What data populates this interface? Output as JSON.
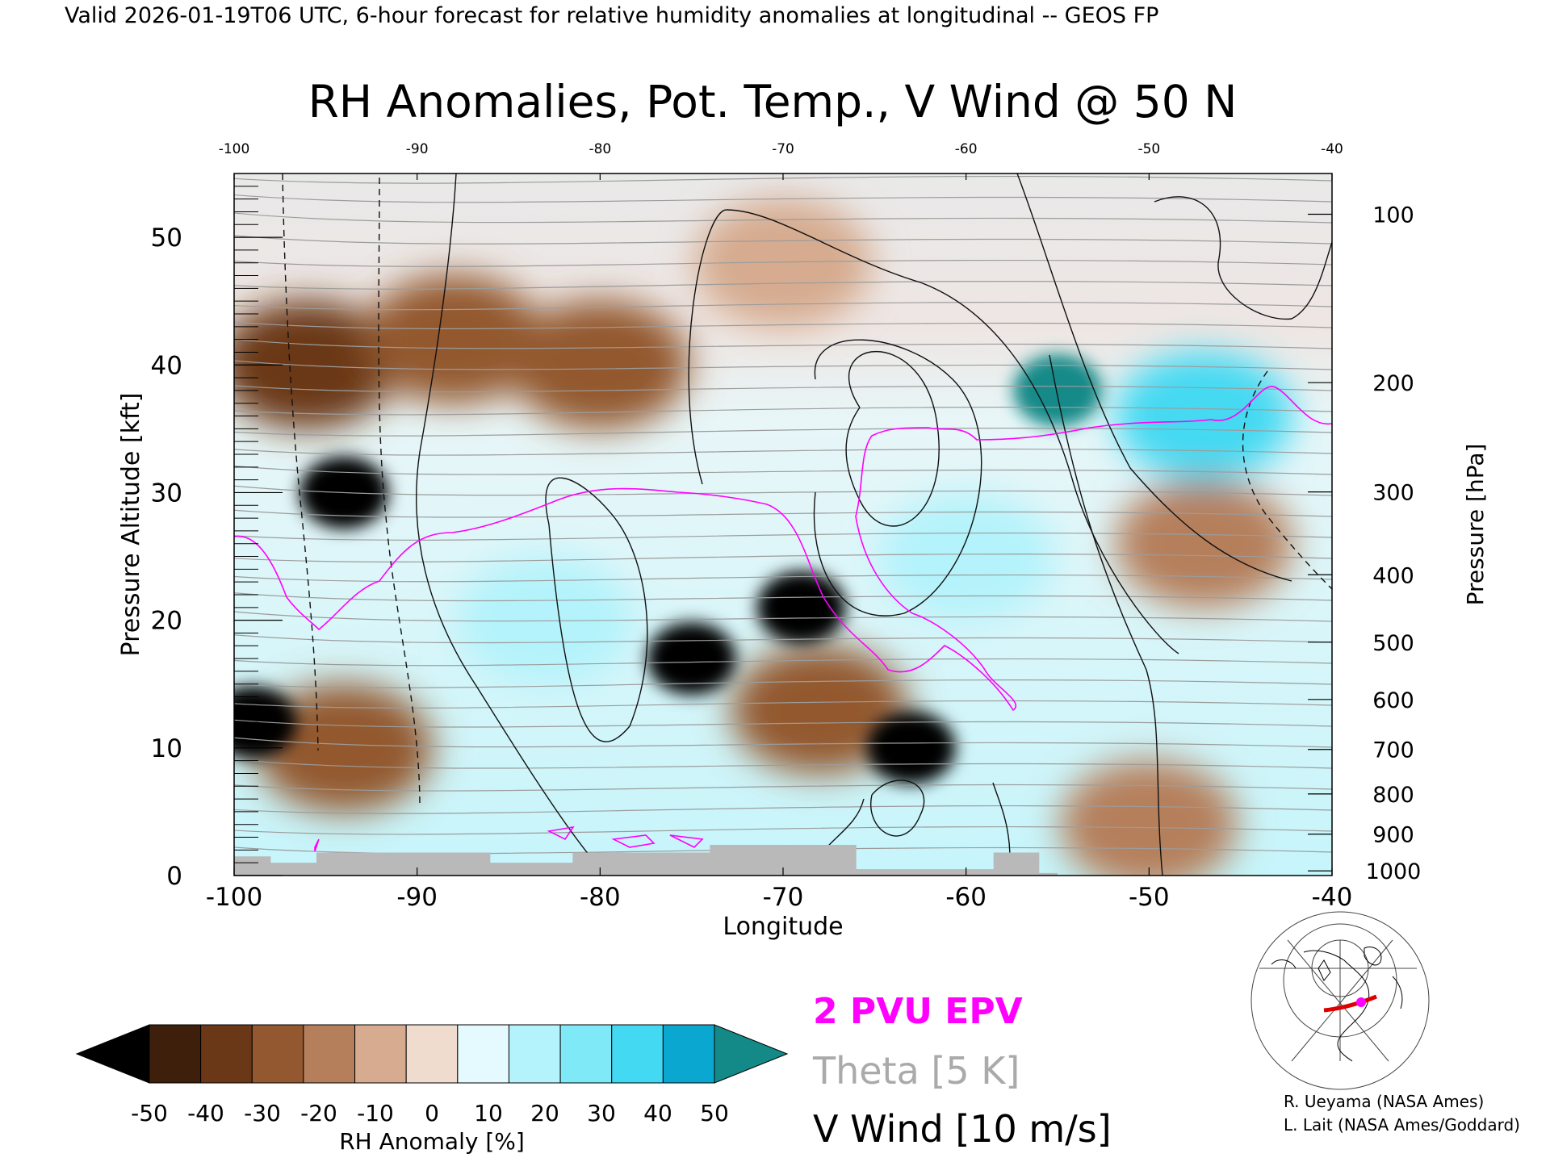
{
  "header": {
    "valid_line": "Valid 2026-01-19T06 UTC, 6-hour forecast for relative humidity anomalies at longitudinal -- GEOS FP"
  },
  "chart_data": {
    "type": "heatmap",
    "title": "RH Anomalies, Pot. Temp., V Wind @ 50 N",
    "xlabel": "Longitude",
    "ylabel_left": "Pressure Altitude [kft]",
    "ylabel_right": "Pressure [hPa]",
    "xlim": [
      -100,
      -40
    ],
    "ylim": [
      0,
      55
    ],
    "x_ticks": [
      "-100",
      "-90",
      "-80",
      "-70",
      "-60",
      "-50",
      "-40"
    ],
    "top_x_ticks": [
      "-100",
      "-90",
      "-80",
      "-70",
      "-60",
      "-50",
      "-40"
    ],
    "y_ticks": [
      "0",
      "10",
      "20",
      "30",
      "40",
      "50"
    ],
    "pressure_levels": [
      {
        "label": "100",
        "hpa": 100
      },
      {
        "label": "200",
        "hpa": 200
      },
      {
        "label": "300",
        "hpa": 300
      },
      {
        "label": "400",
        "hpa": 400
      },
      {
        "label": "500",
        "hpa": 500
      },
      {
        "label": "600",
        "hpa": 600
      },
      {
        "label": "700",
        "hpa": 700
      },
      {
        "label": "800",
        "hpa": 800
      },
      {
        "label": "900",
        "hpa": 900
      },
      {
        "label": "1000",
        "hpa": 1000
      }
    ],
    "colorbar": {
      "label": "RH Anomaly [%]",
      "ticks": [
        "-50",
        "-40",
        "-30",
        "-20",
        "-10",
        "0",
        "10",
        "20",
        "30",
        "40",
        "50"
      ],
      "colors": [
        "#000000",
        "#3d1f0c",
        "#6b3817",
        "#93582f",
        "#b57f5c",
        "#d6ab8f",
        "#f0dccf",
        "#e4fafe",
        "#b4f3fb",
        "#7fe9f8",
        "#44d9f2",
        "#0aa7d0",
        "#138a88"
      ]
    },
    "legend": [
      {
        "label": "2 PVU EPV",
        "color": "#ff00ff"
      },
      {
        "label": "Theta [5 K]",
        "color": "#aaaaaa"
      },
      {
        "label": "V Wind [10 m/s]",
        "color": "#000000"
      }
    ],
    "anomaly_regions": [
      {
        "lon": -94,
        "kft": 30,
        "rh": -50
      },
      {
        "lon": -96,
        "kft": 40,
        "rh": -40
      },
      {
        "lon": -88,
        "kft": 42,
        "rh": -30
      },
      {
        "lon": -99,
        "kft": 12,
        "rh": -50
      },
      {
        "lon": -94,
        "kft": 10,
        "rh": -30
      },
      {
        "lon": -80,
        "kft": 40,
        "rh": -25
      },
      {
        "lon": -69,
        "kft": 21,
        "rh": -50
      },
      {
        "lon": -75,
        "kft": 17,
        "rh": -50
      },
      {
        "lon": -63,
        "kft": 10,
        "rh": -50
      },
      {
        "lon": -68,
        "kft": 13,
        "rh": -30
      },
      {
        "lon": -70,
        "kft": 48,
        "rh": -10
      },
      {
        "lon": -55,
        "kft": 38,
        "rh": 50
      },
      {
        "lon": -47,
        "kft": 36,
        "rh": 40
      },
      {
        "lon": -83,
        "kft": 20,
        "rh": 20
      },
      {
        "lon": -60,
        "kft": 25,
        "rh": 20
      },
      {
        "lon": -50,
        "kft": 4,
        "rh": -15
      },
      {
        "lon": -47,
        "kft": 26,
        "rh": -15
      }
    ],
    "terrain_kft": [
      {
        "lon": -100,
        "kft": 1.5
      },
      {
        "lon": -98,
        "kft": 1.0
      },
      {
        "lon": -95.5,
        "kft": 1.8
      },
      {
        "lon": -86,
        "kft": 1.0
      },
      {
        "lon": -81.5,
        "kft": 1.8
      },
      {
        "lon": -74,
        "kft": 2.4
      },
      {
        "lon": -66,
        "kft": 0.5
      },
      {
        "lon": -58.5,
        "kft": 1.8
      },
      {
        "lon": -56,
        "kft": 0.2
      }
    ]
  },
  "credits": {
    "line1": "R. Ueyama (NASA Ames)",
    "line2": "L. Lait (NASA Ames/Goddard)"
  },
  "map_inset": {
    "icon": "globe-map-icon",
    "track_color": "#dd0000",
    "marker_color": "#ff00ff"
  }
}
